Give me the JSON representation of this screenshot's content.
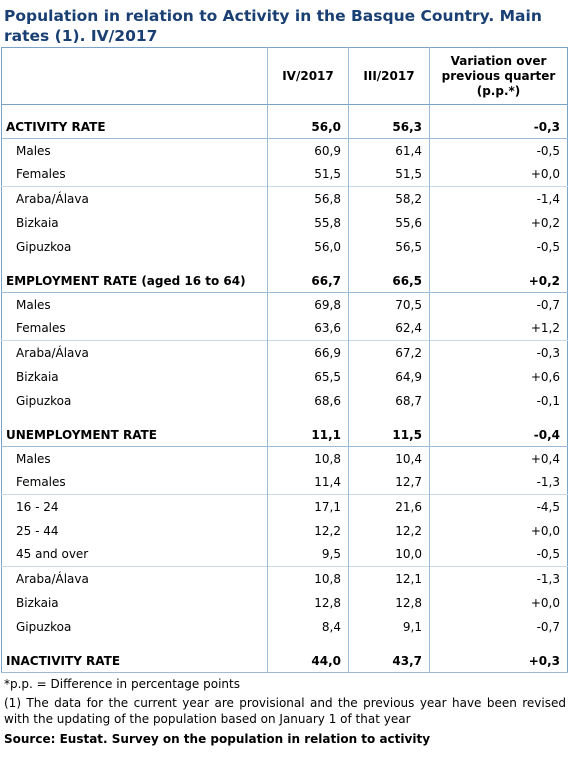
{
  "title": "Population in relation to Activity in the Basque Country. Main rates (1). IV/2017",
  "columns": [
    "IV/2017",
    "III/2017",
    "Variation over previous quarter (p.p.*)"
  ],
  "sections": [
    {
      "heading": {
        "label": "ACTIVITY RATE",
        "v1": "56,0",
        "v2": "56,3",
        "var": "-0,3"
      },
      "groups": [
        [
          {
            "label": "Males",
            "v1": "60,9",
            "v2": "61,4",
            "var": "-0,5"
          },
          {
            "label": "Females",
            "v1": "51,5",
            "v2": "51,5",
            "var": "+0,0"
          }
        ],
        [
          {
            "label": "Araba/Álava",
            "v1": "56,8",
            "v2": "58,2",
            "var": "-1,4"
          },
          {
            "label": "Bizkaia",
            "v1": "55,8",
            "v2": "55,6",
            "var": "+0,2"
          },
          {
            "label": "Gipuzkoa",
            "v1": "56,0",
            "v2": "56,5",
            "var": "-0,5"
          }
        ]
      ]
    },
    {
      "heading": {
        "label": "EMPLOYMENT RATE (aged 16 to 64)",
        "v1": "66,7",
        "v2": "66,5",
        "var": "+0,2"
      },
      "groups": [
        [
          {
            "label": "Males",
            "v1": "69,8",
            "v2": "70,5",
            "var": "-0,7"
          },
          {
            "label": "Females",
            "v1": "63,6",
            "v2": "62,4",
            "var": "+1,2"
          }
        ],
        [
          {
            "label": "Araba/Álava",
            "v1": "66,9",
            "v2": "67,2",
            "var": "-0,3"
          },
          {
            "label": "Bizkaia",
            "v1": "65,5",
            "v2": "64,9",
            "var": "+0,6"
          },
          {
            "label": "Gipuzkoa",
            "v1": "68,6",
            "v2": "68,7",
            "var": "-0,1"
          }
        ]
      ]
    },
    {
      "heading": {
        "label": "UNEMPLOYMENT RATE",
        "v1": "11,1",
        "v2": "11,5",
        "var": "-0,4"
      },
      "groups": [
        [
          {
            "label": "Males",
            "v1": "10,8",
            "v2": "10,4",
            "var": "+0,4"
          },
          {
            "label": "Females",
            "v1": "11,4",
            "v2": "12,7",
            "var": "-1,3"
          }
        ],
        [
          {
            "label": "16 - 24",
            "v1": "17,1",
            "v2": "21,6",
            "var": "-4,5"
          },
          {
            "label": "25 - 44",
            "v1": "12,2",
            "v2": "12,2",
            "var": "+0,0"
          },
          {
            "label": "45 and over",
            "v1": "9,5",
            "v2": "10,0",
            "var": "-0,5"
          }
        ],
        [
          {
            "label": "Araba/Álava",
            "v1": "10,8",
            "v2": "12,1",
            "var": "-1,3"
          },
          {
            "label": "Bizkaia",
            "v1": "12,8",
            "v2": "12,8",
            "var": "+0,0"
          },
          {
            "label": "Gipuzkoa",
            "v1": "8,4",
            "v2": "9,1",
            "var": "-0,7"
          }
        ]
      ]
    },
    {
      "heading": {
        "label": "INACTIVITY RATE",
        "v1": "44,0",
        "v2": "43,7",
        "var": "+0,3"
      },
      "groups": []
    }
  ],
  "notes": {
    "pp": "*p.p. = Difference in percentage points",
    "provisional": "(1) The data for the current year are provisional and the previous year have been revised with the updating of the population based on January 1 of that year",
    "source": "Source: Eustat. Survey on the population in relation to activity"
  },
  "colors": {
    "title": "#1a3f73",
    "border": "#7ba3c8"
  }
}
